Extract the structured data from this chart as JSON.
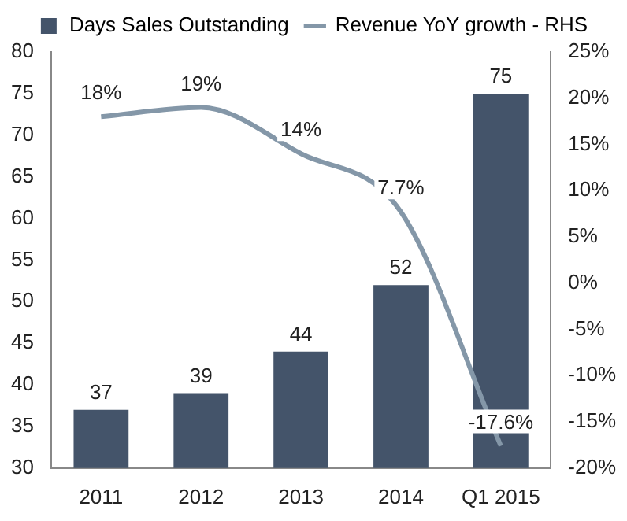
{
  "chart_data": {
    "type": "bar",
    "categories": [
      "2011",
      "2012",
      "2013",
      "2014",
      "Q1 2015"
    ],
    "series": [
      {
        "name": "Days Sales Outstanding",
        "color": "#44546a",
        "values": [
          37,
          39,
          44,
          52,
          75
        ],
        "value_labels": [
          "37",
          "39",
          "44",
          "52",
          "75"
        ]
      },
      {
        "name": "Revenue YoY growth - RHS",
        "type": "line",
        "axis": "y2",
        "color": "#8497a8",
        "values": [
          18,
          19,
          14,
          7.7,
          -17.6
        ],
        "value_labels": [
          "18%",
          "19%",
          "14%",
          "7.7%",
          "-17.6%"
        ]
      }
    ],
    "ylim": [
      30,
      80
    ],
    "yticks": [
      30,
      35,
      40,
      45,
      50,
      55,
      60,
      65,
      70,
      75,
      80
    ],
    "y2lim": [
      -20,
      25
    ],
    "y2ticks": [
      {
        "value": -20,
        "label": "-20%"
      },
      {
        "value": -15,
        "label": "-15%"
      },
      {
        "value": -10,
        "label": "-10%"
      },
      {
        "value": -5,
        "label": "-5%"
      },
      {
        "value": 0,
        "label": "0%"
      },
      {
        "value": 5,
        "label": "5%"
      },
      {
        "value": 10,
        "label": "10%"
      },
      {
        "value": 15,
        "label": "15%"
      },
      {
        "value": 20,
        "label": "20%"
      },
      {
        "value": 25,
        "label": "25%"
      }
    ],
    "grid": false,
    "legend": "top",
    "marker": "none"
  }
}
